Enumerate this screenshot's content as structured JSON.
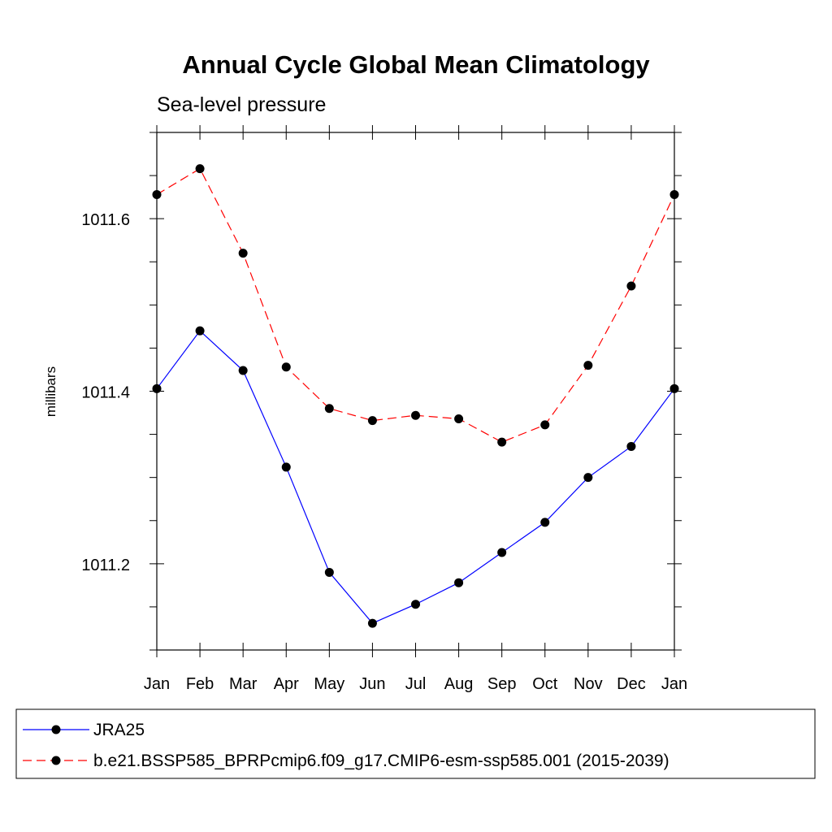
{
  "chart_data": {
    "type": "line",
    "title": "Annual Cycle Global Mean Climatology",
    "subtitle": "Sea-level pressure",
    "xlabel": "",
    "ylabel": "millibars",
    "categories": [
      "Jan",
      "Feb",
      "Mar",
      "Apr",
      "May",
      "Jun",
      "Jul",
      "Aug",
      "Sep",
      "Oct",
      "Nov",
      "Dec",
      "Jan"
    ],
    "ylim": [
      1011.1,
      1011.7
    ],
    "yticks": [
      1011.2,
      1011.4,
      1011.6
    ],
    "ytick_labels": [
      "1011.2",
      "1011.4",
      "1011.6"
    ],
    "yminor_step": 0.05,
    "grid": false,
    "legend_position": "bottom",
    "series": [
      {
        "name": "JRA25",
        "color": "#0000ff",
        "line_style": "solid",
        "marker_color": "#000000",
        "values": [
          1011.403,
          1011.47,
          1011.424,
          1011.312,
          1011.19,
          1011.131,
          1011.153,
          1011.178,
          1011.213,
          1011.248,
          1011.3,
          1011.336,
          1011.403
        ]
      },
      {
        "name": "b.e21.BSSP585_BPRPcmip6.f09_g17.CMIP6-esm-ssp585.001 (2015-2039)",
        "color": "#ff0000",
        "line_style": "dashed",
        "marker_color": "#000000",
        "values": [
          1011.628,
          1011.658,
          1011.56,
          1011.428,
          1011.38,
          1011.366,
          1011.372,
          1011.368,
          1011.341,
          1011.361,
          1011.43,
          1011.522,
          1011.628
        ]
      }
    ]
  }
}
